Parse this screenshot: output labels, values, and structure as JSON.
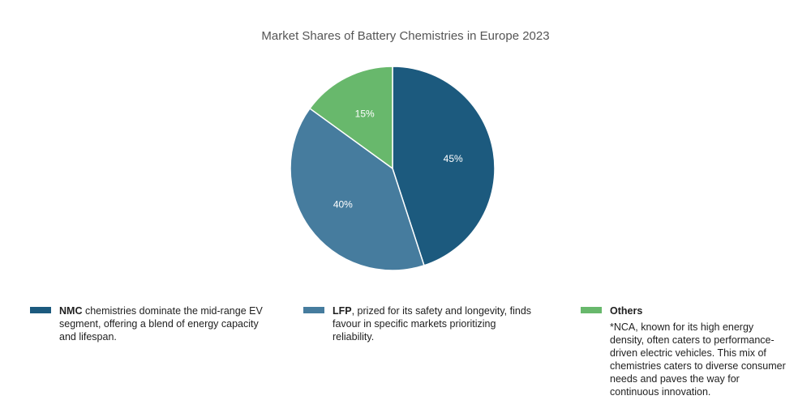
{
  "chart_data": {
    "type": "pie",
    "title": "Market Shares of Battery Chemistries in Europe 2023",
    "slices": [
      {
        "label": "NMC",
        "value": 45,
        "display": "45%",
        "color": "#1c5a7e"
      },
      {
        "label": "LFP",
        "value": 40,
        "display": "40%",
        "color": "#467c9e"
      },
      {
        "label": "Others",
        "value": 15,
        "display": "15%",
        "color": "#68b86c"
      }
    ],
    "legend_placement": "bottom"
  },
  "legend": [
    {
      "name": "NMC",
      "text": " chemistries dominate the mid-range EV segment, offering a blend of energy capacity and lifespan."
    },
    {
      "name": "LFP",
      "text": ", prized for its safety and longevity, finds favour in specific markets prioritizing reliability."
    },
    {
      "name": "Others",
      "text": "*NCA, known for its high energy density, often caters to performance-driven electric vehicles. This mix of chemistries caters to diverse consumer needs and paves the way for continuous innovation."
    }
  ]
}
